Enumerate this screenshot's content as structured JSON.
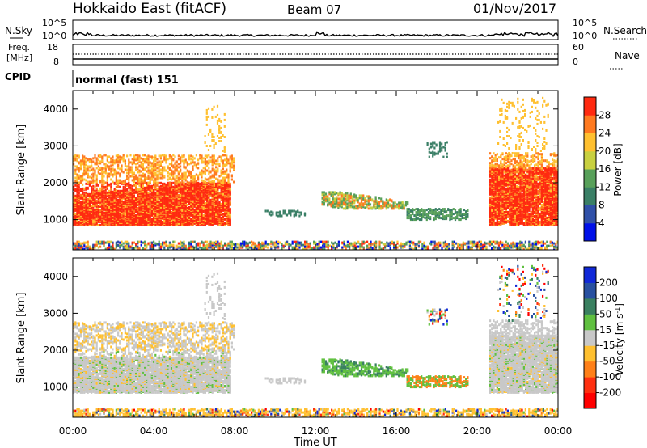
{
  "header": {
    "station": "Hokkaido East (fitACF)",
    "beam": "Beam 07",
    "date": "01/Nov/2017"
  },
  "nsky_panel": {
    "label": "N.Sky",
    "left_ticks": [
      "10^5",
      "10^0"
    ],
    "right_ticks": [
      "10^5",
      "10^0"
    ],
    "right_label": "N.Search"
  },
  "freq_panel": {
    "label_line1": "Freq.",
    "label_line2": "[MHz]",
    "left_ticks": [
      "18",
      "8"
    ],
    "right_ticks": [
      "60",
      "0"
    ],
    "right_label": "Nave"
  },
  "cpid_panel": {
    "label": "CPID",
    "value": "normal (fast) 151"
  },
  "chart_data": [
    {
      "type": "heatmap",
      "name": "power",
      "ylabel": "Slant Range [km]",
      "xlabel": "Time UT",
      "x_ticks": [
        "00:00",
        "04:00",
        "08:00",
        "12:00",
        "16:00",
        "20:00",
        "00:00"
      ],
      "xlim_hours": [
        0,
        24
      ],
      "y_ticks": [
        "1000",
        "2000",
        "3000",
        "4000"
      ],
      "ylim": [
        180,
        4500
      ],
      "colorbar": {
        "label": "Power [dB]",
        "ticks": [
          "4",
          "8",
          "12",
          "16",
          "20",
          "24",
          "28"
        ],
        "range": [
          0,
          30
        ],
        "colors": [
          "#0010e8",
          "#3050a8",
          "#3a7f66",
          "#58a05a",
          "#c8d040",
          "#ffc030",
          "#ff7a20",
          "#ff2a10"
        ]
      }
    },
    {
      "type": "heatmap",
      "name": "velocity",
      "ylabel": "Slant Range [km]",
      "xlabel": "Time UT",
      "x_ticks": [
        "00:00",
        "04:00",
        "08:00",
        "12:00",
        "16:00",
        "20:00",
        "00:00"
      ],
      "xlim_hours": [
        0,
        24
      ],
      "y_ticks": [
        "1000",
        "2000",
        "3000",
        "4000"
      ],
      "ylim": [
        180,
        4500
      ],
      "colorbar": {
        "label_main": "Velocity [m s",
        "label_sup": "-1",
        "label_end": "]",
        "ticks": [
          "200",
          "100",
          "50",
          "15",
          "-15",
          "-50",
          "-100",
          "-200"
        ],
        "colors": [
          "#1028d8",
          "#2850a0",
          "#3a8060",
          "#60c040",
          "#c8c8c8",
          "#ffc030",
          "#ff8018",
          "#ff3010",
          "#ff0000"
        ]
      }
    }
  ],
  "footer": {
    "xlabel": "Time UT"
  }
}
